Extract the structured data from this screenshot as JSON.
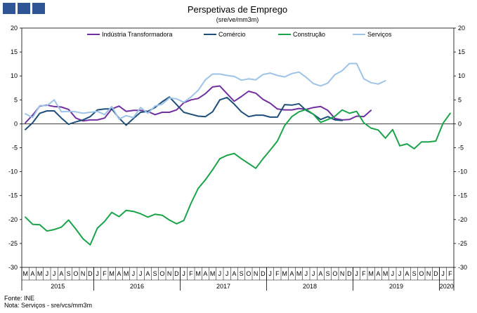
{
  "chart_data": {
    "type": "line",
    "title": "Perspetivas de Emprego",
    "subtitle": "(sre/ve/mm3m)",
    "xlabel": "",
    "ylabel": "",
    "ylim": [
      -30,
      20
    ],
    "yticks": [
      20,
      15,
      10,
      5,
      0,
      -5,
      -10,
      -15,
      -20,
      -25,
      -30
    ],
    "grid": false,
    "legend_position": "top",
    "start_period": "2015-03",
    "month_labels": [
      "M",
      "A",
      "M",
      "J",
      "J",
      "A",
      "S",
      "O",
      "N",
      "D",
      "J",
      "F",
      "M",
      "A",
      "M",
      "J",
      "J",
      "A",
      "S",
      "O",
      "N",
      "D",
      "J",
      "F",
      "M",
      "A",
      "M",
      "J",
      "J",
      "A",
      "S",
      "O",
      "N",
      "D",
      "J",
      "F",
      "M",
      "A",
      "M",
      "J",
      "J",
      "A",
      "S",
      "O",
      "N",
      "D",
      "J",
      "F",
      "M",
      "A",
      "M",
      "J",
      "J",
      "A",
      "S",
      "O",
      "N",
      "D",
      "J",
      "F"
    ],
    "years": [
      {
        "label": "2015",
        "start": 0,
        "count": 10
      },
      {
        "label": "2016",
        "start": 10,
        "count": 12
      },
      {
        "label": "2017",
        "start": 22,
        "count": 12
      },
      {
        "label": "2018",
        "start": 34,
        "count": 12
      },
      {
        "label": "2019",
        "start": 46,
        "count": 12
      },
      {
        "label": "2020",
        "start": 58,
        "count": 2
      }
    ],
    "series": [
      {
        "name": "Indústria Transformadora",
        "color": "#7030a0",
        "values": [
          0.2,
          1.8,
          3.7,
          3.9,
          3.6,
          3.5,
          3.0,
          1.2,
          0.6,
          0.8,
          0.8,
          1.2,
          3.1,
          3.7,
          2.6,
          2.8,
          2.8,
          2.6,
          1.9,
          2.4,
          2.4,
          2.9,
          4.4,
          5.0,
          5.3,
          6.3,
          7.7,
          7.9,
          6.3,
          4.7,
          5.7,
          6.8,
          6.4,
          5.1,
          4.3,
          3.1,
          2.9,
          2.9,
          3.2,
          3.0,
          3.4,
          3.6,
          2.8,
          1.1,
          0.8,
          0.9,
          1.6,
          1.5,
          2.8
        ]
      },
      {
        "name": "Comércio",
        "color": "#1f4e79",
        "values": [
          -1.2,
          0.2,
          2.2,
          2.7,
          2.7,
          1.2,
          -0.1,
          0.4,
          0.8,
          1.5,
          2.9,
          3.1,
          3.1,
          1.2,
          -0.3,
          1.1,
          2.4,
          2.6,
          3.4,
          4.6,
          5.6,
          4.0,
          2.4,
          2.0,
          1.6,
          1.5,
          2.5,
          5.0,
          5.5,
          4.1,
          2.5,
          1.5,
          1.8,
          1.8,
          1.4,
          1.4,
          4.0,
          3.9,
          4.2,
          2.8,
          2.0,
          0.9,
          1.5,
          0.8,
          0.7
        ]
      },
      {
        "name": "Construção",
        "color": "#1aa34a",
        "values": [
          -19.5,
          -21.0,
          -21.1,
          -22.4,
          -22.1,
          -21.6,
          -20.1,
          -22.0,
          -24.0,
          -25.3,
          -21.8,
          -20.4,
          -18.5,
          -19.4,
          -18.1,
          -18.3,
          -18.8,
          -19.5,
          -18.9,
          -19.1,
          -20.1,
          -20.9,
          -20.2,
          -16.6,
          -13.5,
          -11.7,
          -9.6,
          -7.3,
          -6.6,
          -6.2,
          -7.3,
          -8.3,
          -9.3,
          -7.3,
          -5.5,
          -3.6,
          -0.4,
          1.5,
          2.5,
          3.0,
          2.0,
          0.3,
          0.9,
          1.6,
          2.9,
          2.2,
          2.6,
          0.2,
          -0.9,
          -1.3,
          -3.0,
          -1.2,
          -4.6,
          -4.2,
          -5.2,
          -3.8,
          -3.8,
          -3.6,
          0.1,
          2.2
        ]
      },
      {
        "name": "Serviços",
        "color": "#9dc3e6",
        "values": [
          2.1,
          1.3,
          3.8,
          3.8,
          5.0,
          2.5,
          2.6,
          2.5,
          2.2,
          2.4,
          2.6,
          1.9,
          3.6,
          1.0,
          1.7,
          1.3,
          3.4,
          2.2,
          3.7,
          4.1,
          5.4,
          5.2,
          4.5,
          5.6,
          7.0,
          9.2,
          10.4,
          10.4,
          10.1,
          9.9,
          9.1,
          9.4,
          9.2,
          10.3,
          10.6,
          10.1,
          9.8,
          10.5,
          10.8,
          9.7,
          8.4,
          7.9,
          8.5,
          10.3,
          11.1,
          12.6,
          12.6,
          9.4,
          8.6,
          8.3,
          9.0
        ]
      }
    ]
  },
  "footer": {
    "source": "Fonte: INE",
    "note": "Nota: Serviços - sre/vcs/mm3m"
  }
}
